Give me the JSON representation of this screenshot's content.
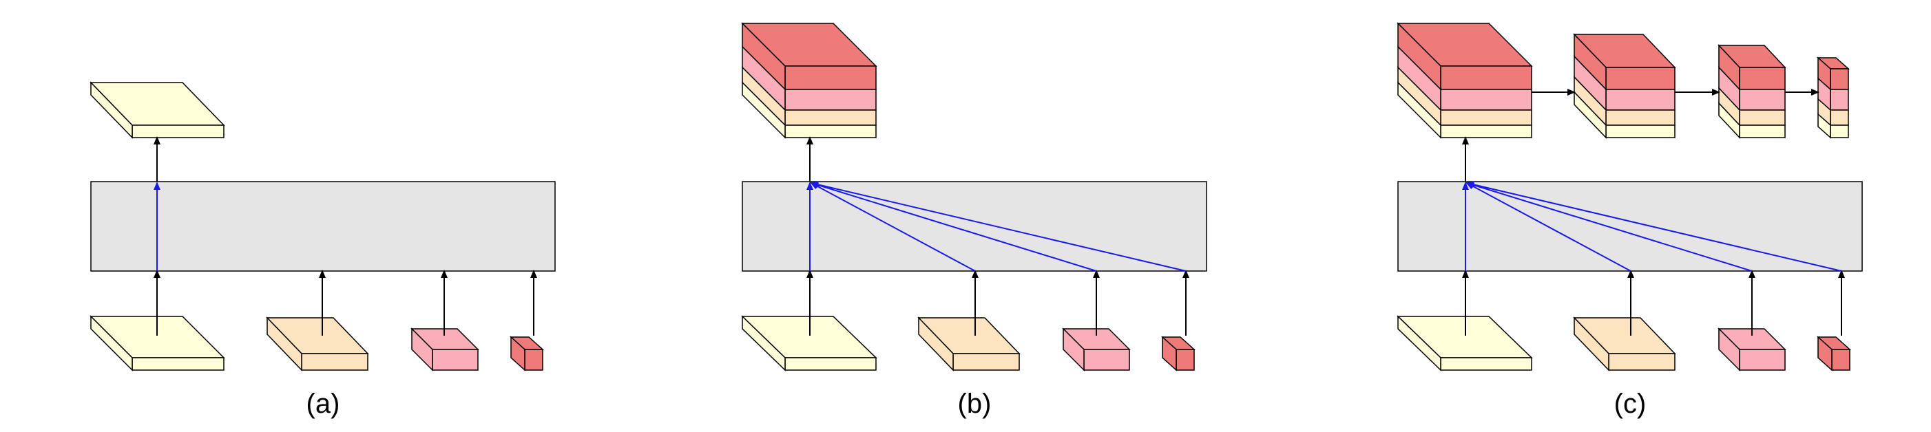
{
  "colors": {
    "background": "#ffffff",
    "block_fill": "#e5e5e5",
    "stroke": "#000000",
    "feature_level_1": "#ffffd9",
    "feature_level_2": "#fde4c1",
    "feature_level_3": "#f9aeb8",
    "feature_level_4": "#ee7a7a",
    "accent_arrow": "#1a1ae6",
    "plain_arrow": "#000000"
  },
  "panels": [
    {
      "id": "a",
      "label": "(a)"
    },
    {
      "id": "b",
      "label": "(b)"
    },
    {
      "id": "c",
      "label": "(c)"
    }
  ]
}
